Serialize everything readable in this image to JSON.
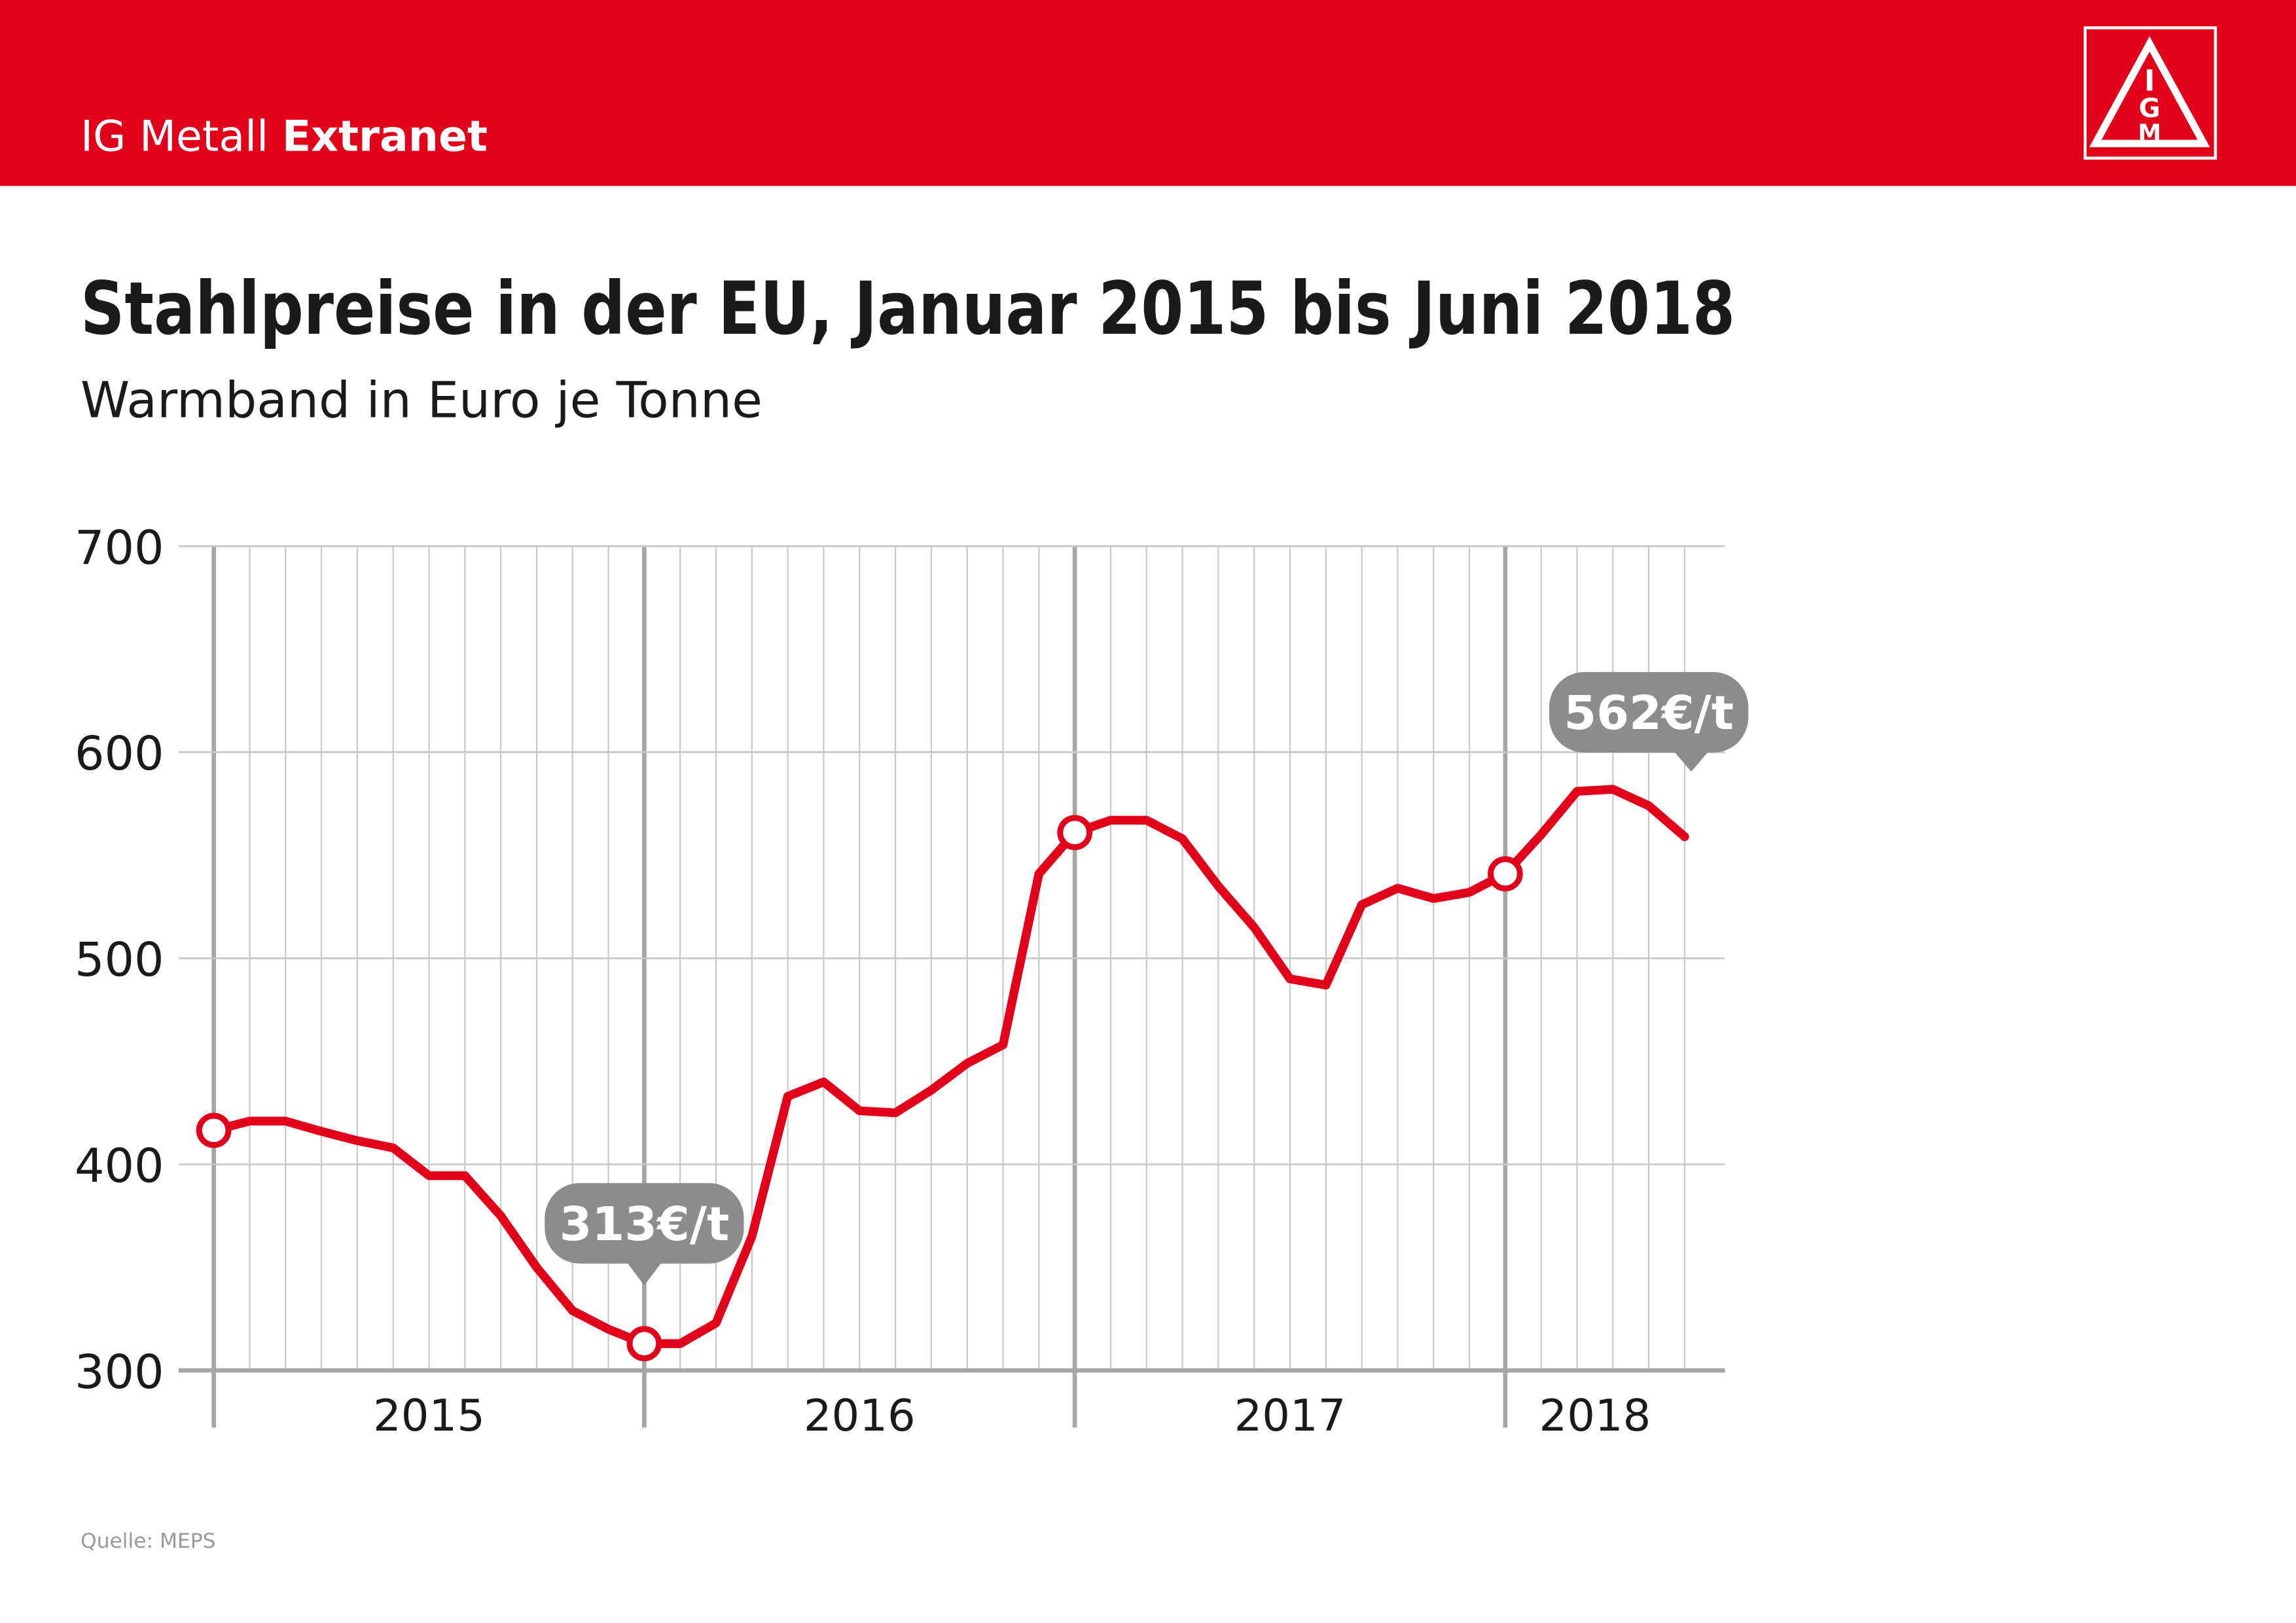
{
  "header": {
    "brand": "IG Metall",
    "brand_bold": "Extranet",
    "logo_letters": [
      "I",
      "G",
      "M"
    ]
  },
  "chart_data": {
    "type": "line",
    "title": "Stahlpreise in der EU, Januar 2015 bis Juni 2018",
    "subtitle": "Warmband in Euro je Tonne",
    "categories": [
      null,
      null,
      null,
      null,
      null,
      null,
      null,
      null,
      null,
      null,
      null,
      null,
      null,
      null,
      null,
      null,
      null,
      null,
      null,
      null,
      null,
      null,
      null,
      null,
      null,
      null,
      null,
      null,
      null,
      null,
      null,
      null,
      null,
      null,
      null,
      null,
      null,
      null,
      null,
      null,
      null,
      null
    ],
    "year_labels": [
      "2015",
      "2016",
      "2017",
      "2018"
    ],
    "series": [
      {
        "name": "Warmband",
        "color": "#e2001a",
        "values": [
          416.5,
          421,
          421,
          416,
          411.5,
          408,
          394.5,
          394.5,
          375,
          350,
          329,
          320,
          313,
          313,
          323,
          365,
          433,
          440,
          426,
          425,
          436,
          449,
          458,
          541,
          561,
          567,
          567,
          558,
          535,
          515,
          490,
          487,
          526,
          534,
          529,
          532,
          541,
          560,
          581,
          582,
          574,
          559
        ]
      }
    ],
    "ylim": [
      300,
      700
    ],
    "yticks": [
      300,
      400,
      500,
      600,
      700
    ],
    "grid": true,
    "annotations": [
      "313€/t",
      "562€/t"
    ],
    "source": "Quelle: MEPS"
  }
}
